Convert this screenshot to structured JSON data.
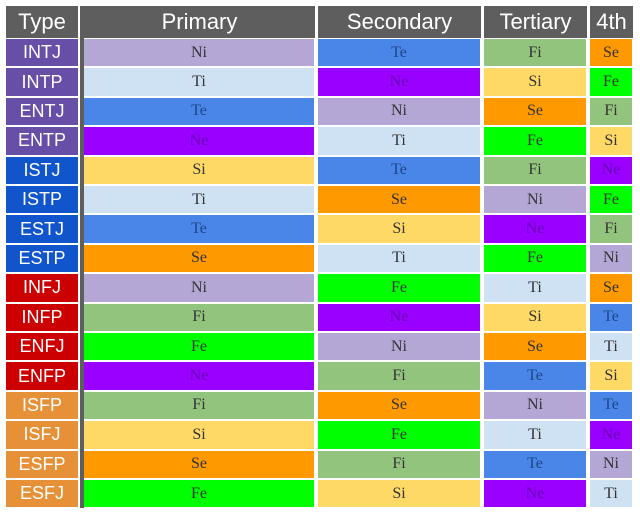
{
  "headers": [
    "Type",
    "Primary",
    "Secondary",
    "Tertiary",
    "4th"
  ],
  "colors": {
    "Ni": "#b4a7d6",
    "Ti": "#cfe2f3",
    "Te": "#4a86e8",
    "Ne": "#9900ff",
    "Si": "#ffd966",
    "Se": "#ff9900",
    "Fi": "#93c47d",
    "Fe": "#00ff00",
    "NT": "#674ea7",
    "SJ": "#1155cc",
    "NF": "#cc0000",
    "SP": "#e69138"
  },
  "text_colors": {
    "Ni": "#333333",
    "Ti": "#333333",
    "Te": "#1c4587",
    "Ne": "#6a00b3",
    "Si": "#333333",
    "Se": "#333333",
    "Fi": "#333333",
    "Fe": "#333333"
  },
  "rows": [
    {
      "type": "INTJ",
      "group": "NT",
      "functions": [
        "Ni",
        "Te",
        "Fi",
        "Se"
      ]
    },
    {
      "type": "INTP",
      "group": "NT",
      "functions": [
        "Ti",
        "Ne",
        "Si",
        "Fe"
      ]
    },
    {
      "type": "ENTJ",
      "group": "NT",
      "functions": [
        "Te",
        "Ni",
        "Se",
        "Fi"
      ]
    },
    {
      "type": "ENTP",
      "group": "NT",
      "functions": [
        "Ne",
        "Ti",
        "Fe",
        "Si"
      ]
    },
    {
      "type": "ISTJ",
      "group": "SJ",
      "functions": [
        "Si",
        "Te",
        "Fi",
        "Ne"
      ]
    },
    {
      "type": "ISTP",
      "group": "SJ",
      "functions": [
        "Ti",
        "Se",
        "Ni",
        "Fe"
      ]
    },
    {
      "type": "ESTJ",
      "group": "SJ",
      "functions": [
        "Te",
        "Si",
        "Ne",
        "Fi"
      ]
    },
    {
      "type": "ESTP",
      "group": "SJ",
      "functions": [
        "Se",
        "Ti",
        "Fe",
        "Ni"
      ]
    },
    {
      "type": "INFJ",
      "group": "NF",
      "functions": [
        "Ni",
        "Fe",
        "Ti",
        "Se"
      ]
    },
    {
      "type": "INFP",
      "group": "NF",
      "functions": [
        "Fi",
        "Ne",
        "Si",
        "Te"
      ]
    },
    {
      "type": "ENFJ",
      "group": "NF",
      "functions": [
        "Fe",
        "Ni",
        "Se",
        "Ti"
      ]
    },
    {
      "type": "ENFP",
      "group": "NF",
      "functions": [
        "Ne",
        "Fi",
        "Te",
        "Si"
      ]
    },
    {
      "type": "ISFP",
      "group": "SP",
      "functions": [
        "Fi",
        "Se",
        "Ni",
        "Te"
      ]
    },
    {
      "type": "ISFJ",
      "group": "SP",
      "functions": [
        "Si",
        "Fe",
        "Ti",
        "Ne"
      ]
    },
    {
      "type": "ESFP",
      "group": "SP",
      "functions": [
        "Se",
        "Fi",
        "Te",
        "Ni"
      ]
    },
    {
      "type": "ESFJ",
      "group": "SP",
      "functions": [
        "Fe",
        "Si",
        "Ne",
        "Ti"
      ]
    }
  ]
}
